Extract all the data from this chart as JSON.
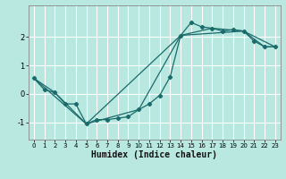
{
  "xlabel": "Humidex (Indice chaleur)",
  "bg_color": "#b8e8e0",
  "line_color": "#1a6b6b",
  "grid_color": "#ffffff",
  "xlim": [
    -0.5,
    23.5
  ],
  "ylim": [
    -1.6,
    3.1
  ],
  "yticks": [
    -1,
    0,
    1,
    2
  ],
  "xtick_labels": [
    "0",
    "1",
    "2",
    "3",
    "4",
    "5",
    "6",
    "7",
    "8",
    "9",
    "10",
    "11",
    "12",
    "13",
    "14",
    "15",
    "16",
    "17",
    "18",
    "19",
    "20",
    "21",
    "22",
    "23"
  ],
  "series1_x": [
    0,
    1,
    2,
    3,
    4,
    5,
    6,
    7,
    8,
    9,
    10,
    11,
    12,
    13,
    14,
    15,
    16,
    17,
    18,
    19,
    20,
    21,
    22,
    23
  ],
  "series1_y": [
    0.55,
    0.15,
    0.05,
    -0.35,
    -0.35,
    -1.05,
    -0.9,
    -0.9,
    -0.85,
    -0.8,
    -0.55,
    -0.35,
    -0.05,
    0.6,
    2.05,
    2.5,
    2.35,
    2.3,
    2.2,
    2.25,
    2.2,
    1.85,
    1.65,
    1.65
  ],
  "series2_x": [
    0,
    2,
    5,
    10,
    14,
    17,
    20,
    22,
    23
  ],
  "series2_y": [
    0.55,
    0.05,
    -1.05,
    -0.55,
    2.05,
    2.3,
    2.2,
    1.65,
    1.65
  ],
  "series3_x": [
    0,
    5,
    14,
    20,
    23
  ],
  "series3_y": [
    0.55,
    -1.05,
    2.05,
    2.2,
    1.65
  ],
  "xlabel_fontsize": 7,
  "tick_fontsize": 5,
  "ytick_fontsize": 6,
  "linewidth": 0.9,
  "markersize": 2.2
}
